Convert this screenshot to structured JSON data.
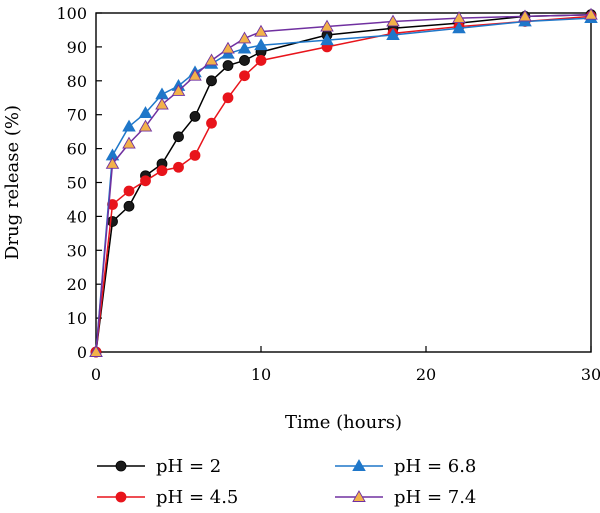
{
  "chart_data": {
    "type": "line",
    "xlabel": "Time (hours)",
    "ylabel": "Drug release (%)",
    "xlim": [
      0,
      30
    ],
    "ylim": [
      0,
      100
    ],
    "xticks": [
      0,
      10,
      20,
      30
    ],
    "yticks": [
      0,
      10,
      20,
      30,
      40,
      50,
      60,
      70,
      80,
      90,
      100
    ],
    "grid": false,
    "legend_position": "bottom",
    "series": [
      {
        "name": "pH = 2",
        "color": "#000000",
        "marker_fill": "#1a1a1a",
        "marker": "circle",
        "x": [
          0,
          1,
          2,
          3,
          4,
          5,
          6,
          7,
          8,
          9,
          10,
          14,
          18,
          22,
          26,
          30
        ],
        "y": [
          0,
          38.5,
          43,
          52,
          55.5,
          63.5,
          69.5,
          80,
          84.5,
          86,
          88.5,
          93.5,
          95.5,
          97,
          99,
          99.5
        ]
      },
      {
        "name": "pH = 4.5",
        "color": "#e8141b",
        "marker_fill": "#e8141b",
        "marker": "circle",
        "x": [
          0,
          1,
          2,
          3,
          4,
          5,
          6,
          7,
          8,
          9,
          10,
          14,
          18,
          22,
          26,
          30
        ],
        "y": [
          0,
          43.5,
          47.5,
          50.5,
          53.5,
          54.5,
          58,
          67.5,
          75,
          81.5,
          86,
          90,
          94,
          96,
          97.5,
          99
        ]
      },
      {
        "name": "pH = 6.8",
        "color": "#1f77c9",
        "marker_fill": "#1f77c9",
        "marker": "triangle",
        "x": [
          0,
          1,
          2,
          3,
          4,
          5,
          6,
          7,
          8,
          9,
          10,
          14,
          18,
          22,
          26,
          30
        ],
        "y": [
          0,
          58,
          66.5,
          70.5,
          76,
          78.5,
          82.5,
          85,
          88,
          89.5,
          90.5,
          92,
          93.5,
          95.5,
          97.5,
          98.5
        ]
      },
      {
        "name": "pH = 7.4",
        "color": "#7030a0",
        "marker_fill": "#f2b24a",
        "marker": "triangle",
        "x": [
          0,
          1,
          2,
          3,
          4,
          5,
          6,
          7,
          8,
          9,
          10,
          14,
          18,
          22,
          26,
          30
        ],
        "y": [
          0,
          55.5,
          61.5,
          66.5,
          73,
          77,
          81.5,
          86,
          89.5,
          92.5,
          94.5,
          96,
          97.5,
          98.5,
          99,
          99.5
        ]
      }
    ]
  }
}
